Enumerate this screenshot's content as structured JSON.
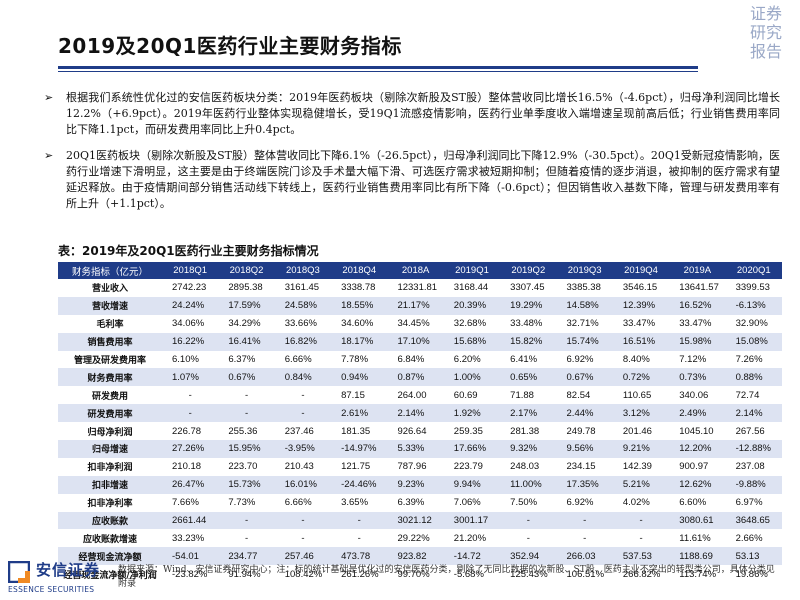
{
  "page": {
    "title": "2019及20Q1医药行业主要财务指标",
    "watermark": [
      "证券",
      "研究",
      "报告"
    ]
  },
  "bullets": [
    {
      "marker": "➢",
      "text": "根据我们系统性优化过的安信医药板块分类：2019年医药板块（剔除次新股及ST股）整体营收同比增长16.5%（-4.6pct），归母净利润同比增长12.2%（+6.9pct）。2019年医药行业整体实现稳健增长，受19Q1流感疫情影响，医药行业单季度收入端增速呈现前高后低；行业销售费用率同比下降1.1pct，而研发费用率同比上升0.4pct。"
    },
    {
      "marker": "➢",
      "text": "20Q1医药板块（剔除次新股及ST股）整体营收同比下降6.1%（-26.5pct），归母净利润同比下降12.9%（-30.5pct）。20Q1受新冠疫情影响，医药行业增速下滑明显，这主要是由于终端医院门诊及手术量大幅下滑、可选医疗需求被短期抑制；但随着疫情的逐步消退，被抑制的医疗需求有望延迟释放。由于疫情期间部分销售活动线下转线上，医药行业销售费用率同比有所下降（-0.6pct）；但因销售收入基数下降，管理与研发费用率有所上升（+1.1pct）。"
    }
  ],
  "table": {
    "caption": "表：2019年及20Q1医药行业主要财务指标情况",
    "header": [
      "财务指标（亿元）",
      "2018Q1",
      "2018Q2",
      "2018Q3",
      "2018Q4",
      "2018A",
      "2019Q1",
      "2019Q2",
      "2019Q3",
      "2019Q4",
      "2019A",
      "2020Q1"
    ],
    "rows": [
      [
        "营业收入",
        "2742.23",
        "2895.38",
        "3161.45",
        "3338.78",
        "12331.81",
        "3168.44",
        "3307.45",
        "3385.38",
        "3546.15",
        "13641.57",
        "3399.53"
      ],
      [
        "营收增速",
        "24.24%",
        "17.59%",
        "24.58%",
        "18.55%",
        "21.17%",
        "20.39%",
        "19.29%",
        "14.58%",
        "12.39%",
        "16.52%",
        "-6.13%"
      ],
      [
        "毛利率",
        "34.06%",
        "34.29%",
        "33.66%",
        "34.60%",
        "34.45%",
        "32.68%",
        "33.48%",
        "32.71%",
        "33.47%",
        "33.47%",
        "32.90%"
      ],
      [
        "销售费用率",
        "16.22%",
        "16.41%",
        "16.82%",
        "18.17%",
        "17.10%",
        "15.68%",
        "15.82%",
        "15.74%",
        "16.51%",
        "15.98%",
        "15.08%"
      ],
      [
        "管理及研发费用率",
        "6.10%",
        "6.37%",
        "6.66%",
        "7.78%",
        "6.84%",
        "6.20%",
        "6.41%",
        "6.92%",
        "8.40%",
        "7.12%",
        "7.26%"
      ],
      [
        "财务费用率",
        "1.07%",
        "0.67%",
        "0.84%",
        "0.94%",
        "0.87%",
        "1.00%",
        "0.65%",
        "0.67%",
        "0.72%",
        "0.73%",
        "0.88%"
      ],
      [
        "研发费用",
        "-",
        "-",
        "-",
        "87.15",
        "264.00",
        "60.69",
        "71.88",
        "82.54",
        "110.65",
        "340.06",
        "72.74"
      ],
      [
        "研发费用率",
        "-",
        "-",
        "-",
        "2.61%",
        "2.14%",
        "1.92%",
        "2.17%",
        "2.44%",
        "3.12%",
        "2.49%",
        "2.14%"
      ],
      [
        "归母净利润",
        "226.78",
        "255.36",
        "237.46",
        "181.35",
        "926.64",
        "259.35",
        "281.38",
        "249.78",
        "201.46",
        "1045.10",
        "267.56"
      ],
      [
        "归母增速",
        "27.26%",
        "15.95%",
        "-3.95%",
        "-14.97%",
        "5.33%",
        "17.66%",
        "9.32%",
        "9.56%",
        "9.21%",
        "12.20%",
        "-12.88%"
      ],
      [
        "扣非净利润",
        "210.18",
        "223.70",
        "210.43",
        "121.75",
        "787.96",
        "223.79",
        "248.03",
        "234.15",
        "142.39",
        "900.97",
        "237.08"
      ],
      [
        "扣非增速",
        "26.47%",
        "15.73%",
        "16.01%",
        "-24.46%",
        "9.23%",
        "9.94%",
        "11.00%",
        "17.35%",
        "5.21%",
        "12.62%",
        "-9.88%"
      ],
      [
        "扣非净利率",
        "7.66%",
        "7.73%",
        "6.66%",
        "3.65%",
        "6.39%",
        "7.06%",
        "7.50%",
        "6.92%",
        "4.02%",
        "6.60%",
        "6.97%"
      ],
      [
        "应收账款",
        "2661.44",
        "-",
        "-",
        "-",
        "3021.12",
        "3001.17",
        "-",
        "-",
        "-",
        "3080.61",
        "3648.65"
      ],
      [
        "应收账款增速",
        "33.23%",
        "-",
        "-",
        "-",
        "29.22%",
        "21.20%",
        "-",
        "-",
        "-",
        "11.61%",
        "2.66%"
      ],
      [
        "经营现金流净额",
        "-54.01",
        "234.77",
        "257.46",
        "473.78",
        "923.82",
        "-14.72",
        "352.94",
        "266.03",
        "537.53",
        "1188.69",
        "53.13"
      ],
      [
        "经营现金流净额/净利润",
        "-23.82%",
        "91.94%",
        "108.42%",
        "261.26%",
        "99.70%",
        "-5.68%",
        "125.43%",
        "106.51%",
        "266.82%",
        "113.74%",
        "19.86%"
      ]
    ]
  },
  "footer": {
    "logo_cn": "安信证券",
    "logo_en": "ESSENCE SECURITIES",
    "source": "数据来源：Wind、安信证券研究中心；注：标的统计基础是优化过的安信医药分类，剔除了无同比数据的次新股、ST股、医药主业不突出的转型类公司，具体分类见附录"
  },
  "colors": {
    "brand_blue": "#1f3c88",
    "row_stripe": "#dde3f2",
    "watermark": "#9aa8c7"
  }
}
